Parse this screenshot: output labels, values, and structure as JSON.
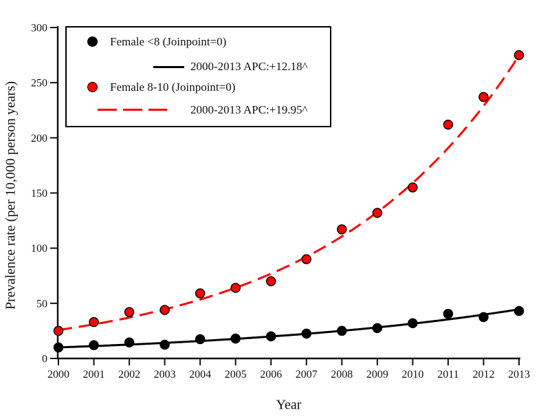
{
  "colors": {
    "background": "#ffffff",
    "axis": "#111111",
    "series_female_lt8": "#000000",
    "series_female_8_10": "#ff0000"
  },
  "chart_data": {
    "type": "scatter",
    "title": "",
    "xlabel": "Year",
    "ylabel": "Prevalence rate (per 10,000 person years)",
    "x": [
      2000,
      2001,
      2002,
      2003,
      2004,
      2005,
      2006,
      2007,
      2008,
      2009,
      2010,
      2011,
      2012,
      2013
    ],
    "x_tick_labels": [
      "2000",
      "2001",
      "2002",
      "2003",
      "2004",
      "2005",
      "2006",
      "2007",
      "2008",
      "2009",
      "2010",
      "2011",
      "2012",
      "2013"
    ],
    "y_ticks": [
      0,
      50,
      100,
      150,
      200,
      250,
      300
    ],
    "xlim": [
      2000,
      2013
    ],
    "ylim": [
      0,
      300
    ],
    "grid": false,
    "legend_position": "top-left",
    "series": [
      {
        "id": "female-lt8",
        "name": "Female <8 (Joinpoint=0)",
        "color": "#000000",
        "marker": "filled-circle",
        "line_style": "solid",
        "values": [
          10,
          12,
          14.5,
          12.5,
          17.5,
          18,
          20,
          22.5,
          25,
          27.5,
          32,
          40.5,
          37.5,
          43
        ],
        "trend": {
          "label": "2000-2013 APC:+12.18^",
          "period": "2000-2013",
          "apc_percent": 12.18,
          "start_value": 10.0
        }
      },
      {
        "id": "female-8-10",
        "name": "Female 8-10 (Joinpoint=0)",
        "color": "#ff0000",
        "marker": "filled-circle",
        "line_style": "dashed",
        "values": [
          25,
          33,
          42,
          44,
          59,
          64,
          70,
          90,
          117,
          132,
          155,
          212,
          237,
          275
        ],
        "trend": {
          "label": "2000-2013 APC:+19.95^",
          "period": "2000-2013",
          "apc_percent": 19.95,
          "start_value": 25.8
        }
      }
    ]
  }
}
